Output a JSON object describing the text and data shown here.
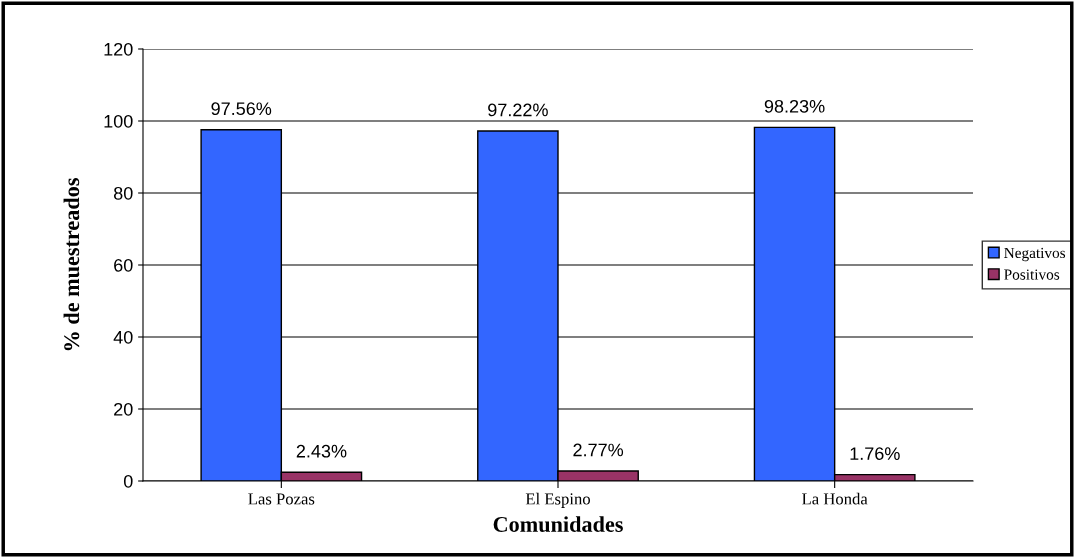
{
  "chart_data": {
    "type": "bar",
    "xlabel": "Comunidades",
    "ylabel": "% de muestreados",
    "categories": [
      "Las Pozas",
      "El Espino",
      "La Honda"
    ],
    "series": [
      {
        "name": "Negativos",
        "color": "#3366ff",
        "values": [
          97.56,
          97.22,
          98.23
        ],
        "value_labels": [
          "97.56%",
          "97.22%",
          "98.23%"
        ]
      },
      {
        "name": "Positivos",
        "color": "#993366",
        "values": [
          2.43,
          2.77,
          1.76
        ],
        "value_labels": [
          "2.43%",
          "2.77%",
          "1.76%"
        ]
      }
    ],
    "ylim": [
      0,
      120
    ],
    "yticks": [
      0,
      20,
      40,
      60,
      80,
      100,
      120
    ],
    "grid": "y",
    "legend": "right"
  }
}
